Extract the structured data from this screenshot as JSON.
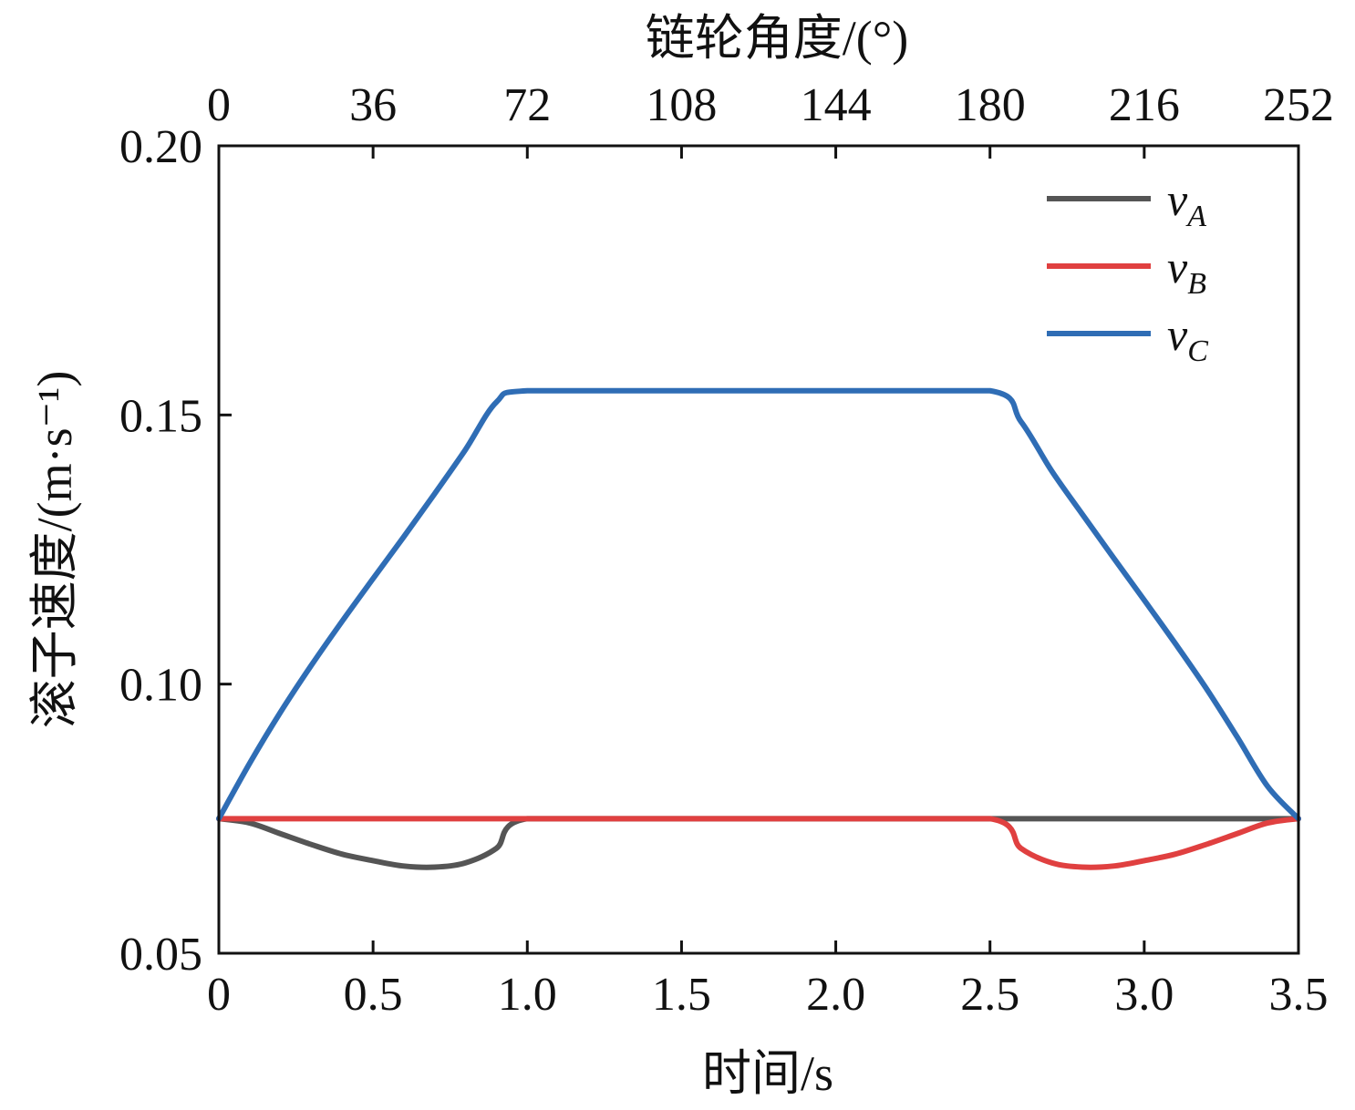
{
  "chart_data": {
    "type": "line",
    "title": "",
    "xlabel": "时间/s",
    "ylabel": "滚子速度/(m·s⁻¹)",
    "x2label": "链轮角度/(°)",
    "xlim": [
      0,
      3.5
    ],
    "ylim": [
      0.05,
      0.2
    ],
    "xticks": [
      "0",
      "0.5",
      "1.0",
      "1.5",
      "2.0",
      "2.5",
      "3.0",
      "3.5"
    ],
    "x2ticks": [
      "0",
      "36",
      "72",
      "108",
      "144",
      "180",
      "216",
      "252"
    ],
    "yticks": [
      "0.05",
      "0.10",
      "0.15",
      "0.20"
    ],
    "grid": false,
    "legend_position": "top-right",
    "series": [
      {
        "name": "vA",
        "legend_main": "v",
        "legend_sub": "A",
        "color": "#555555",
        "x": [
          0,
          0.1,
          0.2,
          0.3,
          0.4,
          0.5,
          0.6,
          0.7,
          0.8,
          0.9,
          1.0,
          1.5,
          2.0,
          2.5,
          3.0,
          3.5
        ],
        "y": [
          0.075,
          0.0742,
          0.0722,
          0.0702,
          0.0684,
          0.0672,
          0.0662,
          0.066,
          0.0668,
          0.0695,
          0.075,
          0.075,
          0.075,
          0.075,
          0.075,
          0.075
        ]
      },
      {
        "name": "vB",
        "legend_main": "v",
        "legend_sub": "B",
        "color": "#e04040",
        "x": [
          0,
          0.5,
          1.0,
          1.5,
          2.0,
          2.5,
          2.6,
          2.7,
          2.8,
          2.9,
          3.0,
          3.1,
          3.2,
          3.3,
          3.4,
          3.5
        ],
        "y": [
          0.075,
          0.075,
          0.075,
          0.075,
          0.075,
          0.075,
          0.0695,
          0.0668,
          0.066,
          0.0662,
          0.0672,
          0.0684,
          0.0702,
          0.0722,
          0.0742,
          0.075
        ]
      },
      {
        "name": "vC",
        "legend_main": "v",
        "legend_sub": "C",
        "color": "#2f6db5",
        "x": [
          0,
          0.1,
          0.2,
          0.3,
          0.4,
          0.5,
          0.6,
          0.7,
          0.8,
          0.9,
          1.0,
          1.5,
          2.0,
          2.5,
          2.6,
          2.7,
          2.8,
          2.9,
          3.0,
          3.1,
          3.2,
          3.3,
          3.4,
          3.5
        ],
        "y": [
          0.075,
          0.0853,
          0.0948,
          0.1035,
          0.1117,
          0.1196,
          0.1274,
          0.1354,
          0.1436,
          0.1524,
          0.1545,
          0.1545,
          0.1545,
          0.1545,
          0.1488,
          0.1396,
          0.1315,
          0.1235,
          0.1156,
          0.1076,
          0.0993,
          0.0903,
          0.081,
          0.075
        ]
      }
    ]
  }
}
